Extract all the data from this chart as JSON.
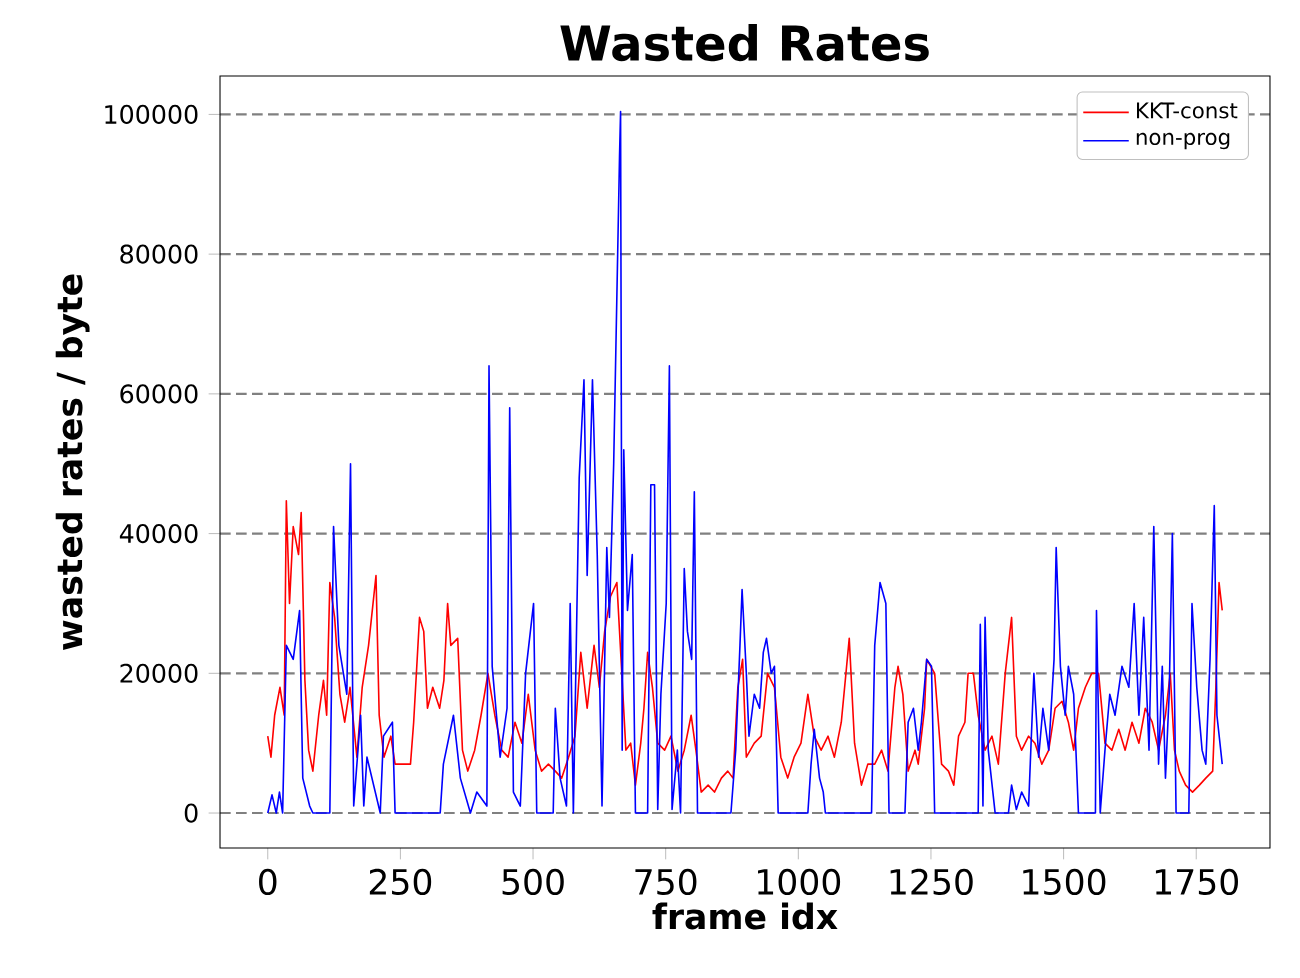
{
  "chart_data": {
    "type": "line",
    "title": "Wasted Rates",
    "xlabel": "frame idx",
    "ylabel": "wasted rates / byte",
    "xlim": [
      -90,
      1889
    ],
    "ylim": [
      -5000,
      105500
    ],
    "xticks": [
      0,
      250,
      500,
      750,
      1000,
      1250,
      1500,
      1750
    ],
    "yticks": [
      0,
      20000,
      40000,
      60000,
      80000,
      100000
    ],
    "grid": "y",
    "legend": "top right",
    "line_style": "solid",
    "marker": "none",
    "series": [
      {
        "name": "KKT-const",
        "color": "#ff0000",
        "x": [
          0,
          6,
          13,
          23,
          31,
          35,
          41,
          48,
          58,
          63,
          70,
          77,
          85,
          96,
          105,
          111,
          117,
          126,
          136,
          145,
          155,
          168,
          178,
          190,
          197,
          204,
          210,
          219,
          232,
          240,
          250,
          269,
          275,
          286,
          294,
          301,
          311,
          324,
          332,
          339,
          345,
          358,
          367,
          377,
          390,
          402,
          415,
          428,
          441,
          453,
          466,
          479,
          491,
          504,
          516,
          529,
          542,
          554,
          567,
          579,
          590,
          602,
          615,
          625,
          635,
          646,
          658,
          668,
          675,
          684,
          693,
          703,
          709,
          716,
          725,
          735,
          748,
          760,
          773,
          785,
          798,
          807,
          817,
          830,
          842,
          855,
          867,
          877,
          886,
          895,
          902,
          917,
          930,
          942,
          955,
          967,
          980,
          992,
          1005,
          1018,
          1030,
          1043,
          1056,
          1068,
          1081,
          1091,
          1096,
          1106,
          1119,
          1131,
          1144,
          1157,
          1169,
          1182,
          1188,
          1197,
          1207,
          1220,
          1226,
          1238,
          1242,
          1257,
          1264,
          1270,
          1283,
          1293,
          1302,
          1314,
          1320,
          1330,
          1339,
          1352,
          1365,
          1377,
          1390,
          1402,
          1411,
          1421,
          1434,
          1446,
          1459,
          1472,
          1484,
          1497,
          1509,
          1519,
          1528,
          1541,
          1553,
          1566,
          1578,
          1591,
          1604,
          1616,
          1629,
          1642,
          1654,
          1667,
          1679,
          1692,
          1701,
          1709,
          1718,
          1730,
          1743,
          1756,
          1768,
          1781,
          1787,
          1793,
          1799
        ],
        "values": [
          11000,
          8000,
          14000,
          18000,
          14000,
          44700,
          30000,
          41000,
          37000,
          43000,
          19000,
          9000,
          6000,
          14000,
          19000,
          14000,
          33000,
          28000,
          17000,
          13000,
          18000,
          8000,
          18000,
          24000,
          29000,
          34000,
          14000,
          8000,
          11000,
          7000,
          7000,
          7000,
          13000,
          28000,
          26000,
          15000,
          18000,
          15000,
          19000,
          30000,
          24000,
          25000,
          9000,
          6000,
          9000,
          14000,
          20000,
          14000,
          9000,
          8000,
          13000,
          10000,
          17000,
          9000,
          6000,
          7000,
          6000,
          5000,
          8000,
          11000,
          23000,
          15000,
          24000,
          18000,
          26000,
          31000,
          33000,
          19000,
          9000,
          10000,
          4000,
          10000,
          15000,
          23000,
          18000,
          10000,
          9000,
          11000,
          6000,
          9000,
          14000,
          9000,
          3000,
          4000,
          3000,
          5000,
          6000,
          5000,
          18000,
          22000,
          8000,
          10000,
          11000,
          20000,
          18000,
          8000,
          5000,
          8000,
          10000,
          17000,
          11000,
          9000,
          11000,
          8000,
          13000,
          21000,
          25000,
          10000,
          4000,
          7000,
          7000,
          9000,
          6000,
          18000,
          21000,
          17000,
          6000,
          9000,
          7000,
          15000,
          22000,
          20000,
          13000,
          7000,
          6000,
          4000,
          11000,
          13000,
          20000,
          20000,
          14000,
          9000,
          11000,
          7000,
          20000,
          28000,
          11000,
          9000,
          11000,
          10000,
          7000,
          9000,
          15000,
          16000,
          13000,
          9000,
          15000,
          18000,
          20000,
          20000,
          10000,
          9000,
          12000,
          9000,
          13000,
          10000,
          15000,
          13000,
          9000,
          14000,
          20000,
          9000,
          6000,
          4000,
          3000,
          4000,
          5000,
          6000,
          18000,
          33000,
          29000
        ]
      },
      {
        "name": "non-prog",
        "color": "#0000ff",
        "x": [
          0,
          8,
          16,
          22,
          28,
          35,
          48,
          60,
          66,
          79,
          85,
          117,
          124,
          134,
          149,
          156,
          162,
          175,
          181,
          187,
          212,
          218,
          235,
          240,
          325,
          331,
          350,
          363,
          382,
          394,
          413,
          417,
          423,
          438,
          451,
          456,
          463,
          476,
          486,
          501,
          507,
          538,
          542,
          551,
          563,
          570,
          576,
          587,
          596,
          602,
          612,
          621,
          630,
          639,
          644,
          652,
          659,
          663,
          665,
          668,
          671,
          678,
          687,
          693,
          716,
          722,
          729,
          735,
          741,
          751,
          757,
          762,
          772,
          778,
          785,
          791,
          799,
          804,
          810,
          873,
          882,
          890,
          894,
          902,
          907,
          917,
          927,
          934,
          940,
          949,
          955,
          962,
          1018,
          1024,
          1030,
          1040,
          1047,
          1051,
          1138,
          1144,
          1154,
          1165,
          1171,
          1201,
          1207,
          1217,
          1226,
          1232,
          1242,
          1251,
          1257,
          1339,
          1343,
          1348,
          1352,
          1358,
          1371,
          1396,
          1402,
          1411,
          1421,
          1434,
          1444,
          1453,
          1461,
          1472,
          1482,
          1486,
          1494,
          1503,
          1509,
          1519,
          1528,
          1560,
          1562,
          1569,
          1578,
          1587,
          1597,
          1610,
          1623,
          1633,
          1642,
          1651,
          1661,
          1670,
          1679,
          1686,
          1692,
          1699,
          1705,
          1712,
          1736,
          1742,
          1751,
          1761,
          1768,
          1776,
          1784,
          1789,
          1799
        ],
        "values": [
          0,
          2600,
          0,
          3000,
          0,
          24000,
          22000,
          29000,
          5000,
          1000,
          0,
          0,
          41000,
          24000,
          17000,
          50000,
          1000,
          14000,
          1000,
          8000,
          0,
          11000,
          13000,
          0,
          0,
          7000,
          14000,
          5000,
          0,
          3000,
          1000,
          64000,
          21000,
          8000,
          15000,
          58000,
          3000,
          1000,
          20000,
          30000,
          0,
          0,
          15000,
          5000,
          1000,
          30000,
          0,
          48000,
          62000,
          34000,
          62000,
          37000,
          1000,
          38000,
          28000,
          50000,
          78000,
          94000,
          100400,
          9000,
          52000,
          29000,
          37000,
          0,
          0,
          47000,
          47000,
          500,
          17000,
          30000,
          64000,
          500,
          9000,
          0,
          35000,
          26000,
          22000,
          46000,
          0,
          0,
          9000,
          24000,
          32000,
          20000,
          11000,
          17000,
          15000,
          23000,
          25000,
          20000,
          21000,
          0,
          0,
          7000,
          12000,
          5000,
          3000,
          0,
          0,
          24000,
          33000,
          30000,
          0,
          0,
          13000,
          15000,
          9000,
          13000,
          22000,
          21000,
          0,
          0,
          27000,
          1000,
          28000,
          9000,
          0,
          0,
          4000,
          500,
          3000,
          1000,
          20000,
          8000,
          15000,
          9000,
          22000,
          38000,
          21000,
          14000,
          21000,
          17000,
          0,
          0,
          29000,
          0,
          9000,
          17000,
          14000,
          21000,
          18000,
          30000,
          14000,
          28000,
          9000,
          41000,
          7000,
          21000,
          5000,
          17000,
          40000,
          0,
          0,
          30000,
          18000,
          9000,
          7000,
          22000,
          44000,
          14000,
          7000
        ]
      }
    ]
  }
}
